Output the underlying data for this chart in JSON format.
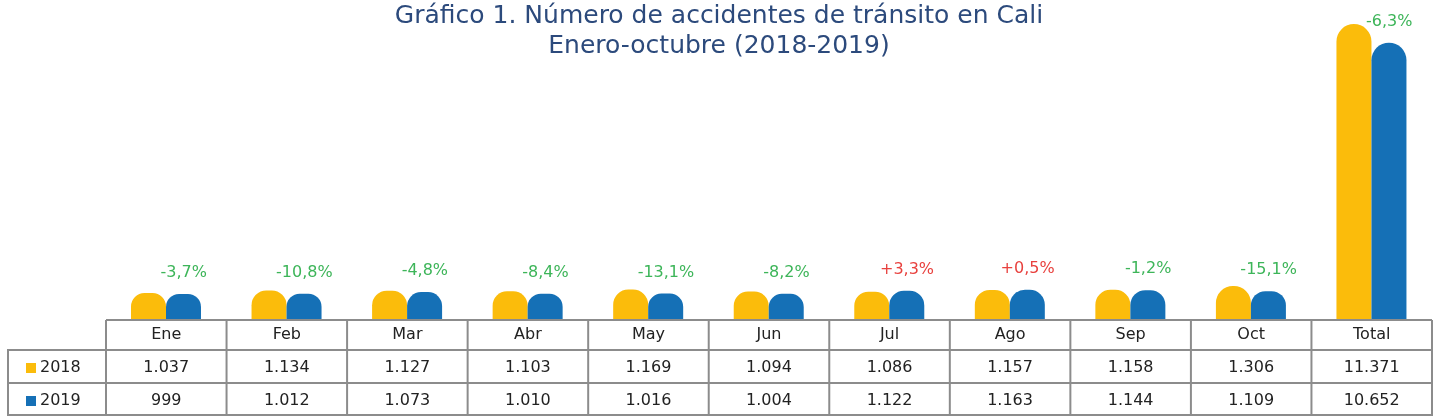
{
  "chart_data": {
    "type": "bar",
    "title": "Gráfico 1. Número de accidentes de tránsito en Cali",
    "subtitle": "Enero-octubre (2018-2019)",
    "categories": [
      "Ene",
      "Feb",
      "Mar",
      "Abr",
      "May",
      "Jun",
      "Jul",
      "Ago",
      "Sep",
      "Oct",
      "Total"
    ],
    "series": [
      {
        "name": "2018",
        "color": "#fbbc0b",
        "values": [
          1037,
          1134,
          1127,
          1103,
          1169,
          1094,
          1086,
          1157,
          1158,
          1306,
          11371
        ],
        "value_labels": [
          "1.037",
          "1.134",
          "1.127",
          "1.103",
          "1.169",
          "1.094",
          "1.086",
          "1.157",
          "1.158",
          "1.306",
          "11.371"
        ]
      },
      {
        "name": "2019",
        "color": "#1570b6",
        "values": [
          999,
          1012,
          1073,
          1010,
          1016,
          1004,
          1122,
          1163,
          1144,
          1109,
          10652
        ],
        "value_labels": [
          "999",
          "1.012",
          "1.073",
          "1.010",
          "1.016",
          "1.004",
          "1.122",
          "1.163",
          "1.144",
          "1.109",
          "10.652"
        ]
      }
    ],
    "annotations": [
      "-3,7%",
      "-10,8%",
      "-4,8%",
      "-8,4%",
      "-13,1%",
      "-8,2%",
      "+3,3%",
      "+0,5%",
      "-1,2%",
      "-15,1%",
      "-6,3%"
    ],
    "legend": "bottom left"
  }
}
